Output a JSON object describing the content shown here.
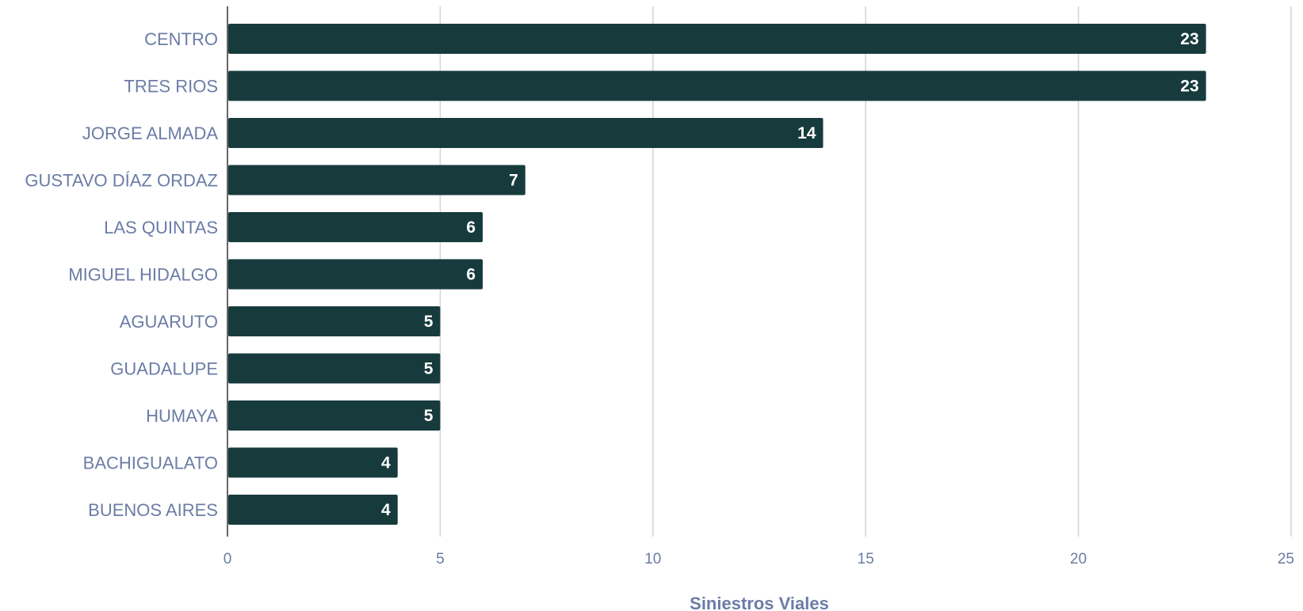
{
  "chart_data": {
    "type": "bar",
    "orientation": "horizontal",
    "categories": [
      "CENTRO",
      "TRES RIOS",
      "JORGE ALMADA",
      "GUSTAVO DÍAZ ORDAZ",
      "LAS QUINTAS",
      "MIGUEL HIDALGO",
      "AGUARUTO",
      "GUADALUPE",
      "HUMAYA",
      "BACHIGUALATO",
      "BUENOS AIRES"
    ],
    "values": [
      23,
      23,
      14,
      7,
      6,
      6,
      5,
      5,
      5,
      4,
      4
    ],
    "xlabel": "Siniestros Viales",
    "xlim": [
      0,
      25
    ],
    "xticks": [
      0,
      5,
      10,
      15,
      20,
      25
    ],
    "grid": "vertical",
    "data_labels": true,
    "colors": {
      "bar": "#173b3d",
      "grid": "#d3d3d3",
      "axis": "#333333",
      "label_text": "#6b7ca6",
      "value_text": "#ffffff"
    }
  }
}
